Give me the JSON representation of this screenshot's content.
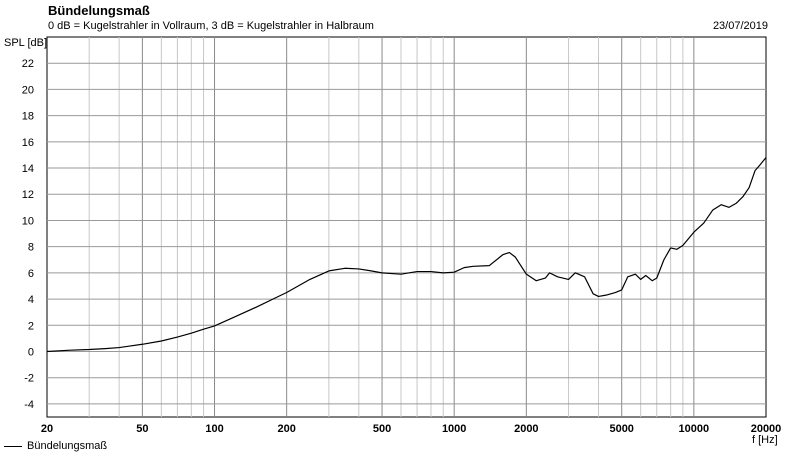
{
  "header": {
    "title": "Bündelungsmaß",
    "subtitle": "0 dB = Kugelstrahler in Vollraum, 3 dB = Kugelstrahler in Halbraum",
    "date": "23/07/2019"
  },
  "chart_data": {
    "type": "line",
    "title": "Bündelungsmaß",
    "ylabel": "SPL [dB]",
    "xlabel": "f [Hz]",
    "xscale": "log",
    "xlim": [
      20,
      20000
    ],
    "ylim": [
      -5,
      24
    ],
    "grid": true,
    "legend_position": "bottom-left",
    "x_ticks": [
      20,
      50,
      100,
      200,
      500,
      1000,
      2000,
      5000,
      10000,
      20000
    ],
    "x_tick_labels": [
      "20",
      "50",
      "100",
      "200",
      "500",
      "1000",
      "2000",
      "5000",
      "10000",
      "20000"
    ],
    "y_ticks": [
      -4,
      -2,
      0,
      2,
      4,
      6,
      8,
      10,
      12,
      14,
      16,
      18,
      20,
      22
    ],
    "y_tick_labels": [
      "-4",
      "-2",
      "0",
      "2",
      "4",
      "6",
      "8",
      "10",
      "12",
      "14",
      "16",
      "18",
      "20",
      "22"
    ],
    "series": [
      {
        "name": "Bündelungsmaß",
        "color": "#000000",
        "x": [
          20,
          25,
          30,
          35,
          40,
          50,
          60,
          70,
          80,
          90,
          100,
          120,
          150,
          180,
          200,
          250,
          300,
          350,
          400,
          450,
          500,
          600,
          700,
          800,
          900,
          1000,
          1100,
          1200,
          1400,
          1600,
          1700,
          1800,
          2000,
          2200,
          2400,
          2500,
          2700,
          3000,
          3200,
          3500,
          3800,
          4000,
          4300,
          4700,
          5000,
          5300,
          5700,
          6000,
          6300,
          6700,
          7000,
          7500,
          8000,
          8500,
          9000,
          10000,
          11000,
          12000,
          13000,
          14000,
          15000,
          16000,
          17000,
          18000,
          19000,
          20000
        ],
        "values": [
          0.0,
          0.1,
          0.15,
          0.22,
          0.3,
          0.55,
          0.8,
          1.1,
          1.4,
          1.7,
          1.95,
          2.6,
          3.4,
          4.1,
          4.5,
          5.5,
          6.15,
          6.35,
          6.3,
          6.15,
          6.0,
          5.9,
          6.1,
          6.1,
          6.0,
          6.05,
          6.4,
          6.5,
          6.55,
          7.4,
          7.55,
          7.2,
          5.9,
          5.4,
          5.6,
          6.0,
          5.7,
          5.5,
          6.0,
          5.7,
          4.4,
          4.2,
          4.3,
          4.5,
          4.7,
          5.7,
          5.9,
          5.5,
          5.8,
          5.4,
          5.6,
          7.0,
          7.9,
          7.8,
          8.1,
          9.1,
          9.8,
          10.8,
          11.2,
          11.0,
          11.3,
          11.8,
          12.5,
          13.8,
          14.3,
          14.8
        ]
      }
    ]
  }
}
